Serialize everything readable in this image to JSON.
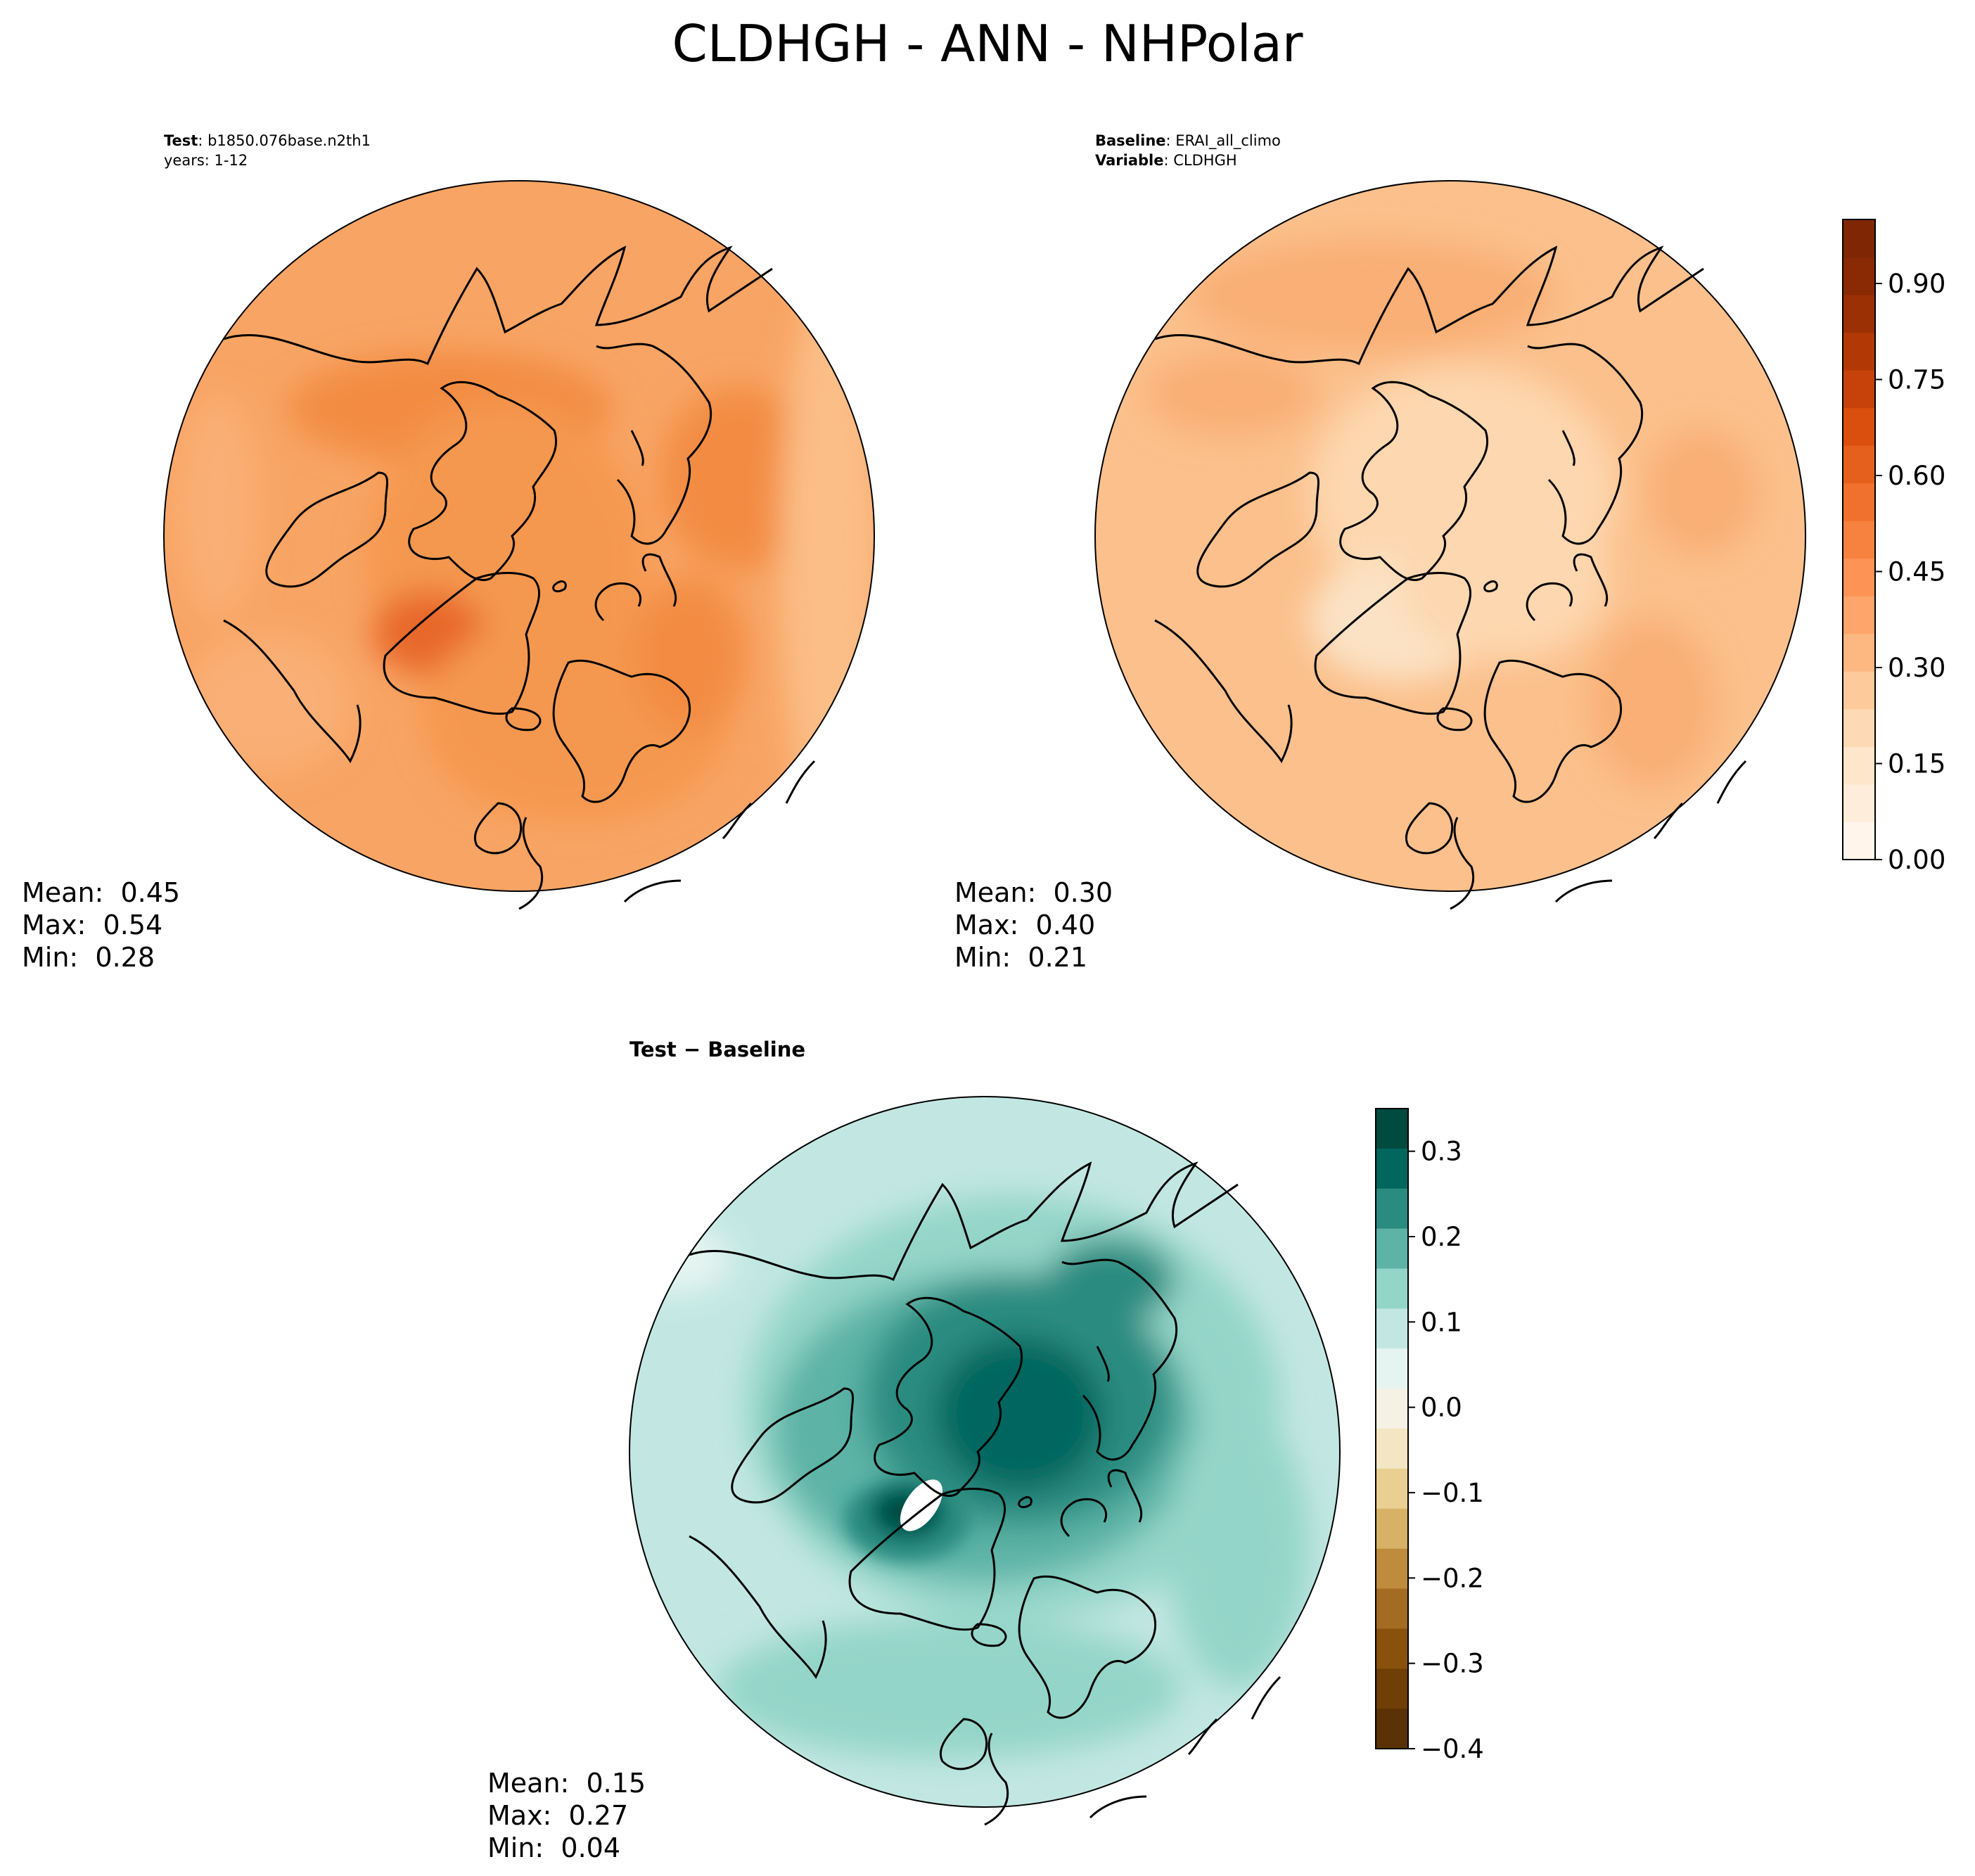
{
  "figure": {
    "title": "CLDHGH - ANN - NHPolar"
  },
  "panels": {
    "test": {
      "label_key": "Test",
      "label_value": "b1850.076base.n2th1",
      "years": "years: 1-12",
      "stats": {
        "mean": "Mean:  0.45",
        "max": "Max:  0.54",
        "min": "Min:  0.28"
      }
    },
    "baseline": {
      "label_key": "Baseline",
      "label_value": "ERAI_all_climo",
      "variable_key": "Variable",
      "variable_value": "CLDHGH",
      "stats": {
        "mean": "Mean:  0.30",
        "max": "Max:  0.40",
        "min": "Min:  0.21"
      }
    },
    "diff": {
      "title": "Test − Baseline",
      "stats": {
        "mean": "Mean:  0.15",
        "max": "Max:  0.27",
        "min": "Min:  0.04"
      }
    }
  },
  "chart_data": [
    {
      "type": "heatmap",
      "projection": "north-polar-stereographic",
      "name": "test",
      "colormap": "Oranges",
      "levels_range": [
        0.0,
        1.0
      ],
      "mean": 0.45,
      "max": 0.54,
      "min": 0.28,
      "base_color": "#f8a464",
      "region_colors": [
        "#f38c42",
        "#f59850",
        "#e8682a",
        "#fbbe86",
        "#f9af74"
      ]
    },
    {
      "type": "heatmap",
      "projection": "north-polar-stereographic",
      "name": "baseline",
      "colormap": "Oranges",
      "levels_range": [
        0.0,
        1.0
      ],
      "mean": 0.3,
      "max": 0.4,
      "min": 0.21,
      "base_color": "#fbc08c",
      "region_colors": [
        "#fdd7af",
        "#f9af74",
        "#fbe2c4"
      ]
    },
    {
      "type": "heatmap",
      "projection": "north-polar-stereographic",
      "name": "difference",
      "colormap": "BrBG",
      "levels_range": [
        -0.4,
        0.35
      ],
      "mean": 0.15,
      "max": 0.27,
      "min": 0.04,
      "base_color": "#c2e7e2",
      "region_colors": [
        "#94d5c9",
        "#5cb3a6",
        "#2a8c80",
        "#01665e",
        "#004a3f",
        "#e6f4f1",
        "#ffffff"
      ]
    }
  ],
  "colorbars": {
    "main": {
      "ticks": [
        "0.00",
        "0.15",
        "0.30",
        "0.45",
        "0.60",
        "0.75",
        "0.90"
      ],
      "tick_values": [
        0.0,
        0.15,
        0.3,
        0.45,
        0.6,
        0.75,
        0.9
      ],
      "range": [
        0.0,
        1.0
      ],
      "colors": [
        "#fff5eb",
        "#feeddb",
        "#fee6cb",
        "#fdd9b5",
        "#fdca9b",
        "#fdb882",
        "#fda56a",
        "#fd9354",
        "#f7823f",
        "#f0702d",
        "#e5601c",
        "#da4e0e",
        "#c6420a",
        "#b23806",
        "#9b3004",
        "#892a04",
        "#7f2704"
      ]
    },
    "diff": {
      "ticks": [
        "0.3",
        "0.2",
        "0.1",
        "0.0",
        "−0.1",
        "−0.2",
        "−0.3",
        "−0.4"
      ],
      "tick_values": [
        0.3,
        0.2,
        0.1,
        0.0,
        -0.1,
        -0.2,
        -0.3,
        -0.4
      ],
      "range": [
        -0.4,
        0.35
      ],
      "colors": [
        "#004a3f",
        "#01665e",
        "#2a8c80",
        "#5cb3a6",
        "#94d5c9",
        "#c2e7e2",
        "#e6f4f1",
        "#f5f1e4",
        "#f4e6c2",
        "#e9cf92",
        "#d7b266",
        "#bf8b3c",
        "#a46b23",
        "#8a510c",
        "#6f3f06",
        "#5a3205"
      ]
    }
  }
}
